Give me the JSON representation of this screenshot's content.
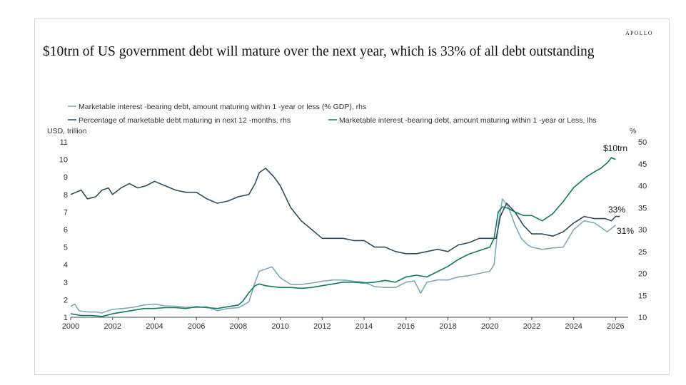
{
  "brand": "APOLLO",
  "title": "$10trn of US government debt will mature over the next year, which is 33% of all debt outstanding",
  "chart_data": {
    "type": "line",
    "title": "$10trn of US government debt will mature over the next year, which is 33% of all debt outstanding",
    "left_axis_label": "USD, trillion",
    "right_axis_label": "%",
    "ylim_left": [
      1,
      11
    ],
    "ylim_right": [
      10,
      50
    ],
    "xlim": [
      2000,
      2026.6
    ],
    "x_ticks": [
      "2000",
      "2002",
      "2004",
      "2006",
      "2008",
      "2010",
      "2012",
      "2014",
      "2016",
      "2018",
      "2020",
      "2022",
      "2024",
      "2026"
    ],
    "y_ticks_left": [
      "1",
      "2",
      "3",
      "4",
      "5",
      "6",
      "7",
      "8",
      "9",
      "10",
      "11"
    ],
    "y_ticks_right": [
      "10",
      "15",
      "20",
      "25",
      "30",
      "35",
      "40",
      "45",
      "50"
    ],
    "legend": [
      "Marketable interest -bearing debt, amount maturing within 1 -year or less (% GDP), rhs",
      "Percentage of marketable debt maturing in next 12 -months, rhs",
      "Marketable interest -bearing debt, amount maturing within 1 -year or Less, lhs"
    ],
    "annotations": [
      "$10trn",
      "33%",
      "31%"
    ],
    "series": [
      {
        "name": "Marketable interest -bearing debt, amount maturing within 1 -year or less (% GDP), rhs",
        "axis": "right",
        "color": "#7fa8b8",
        "x": [
          2000,
          2000.2,
          2000.4,
          2000.8,
          2001.2,
          2001.5,
          2001.8,
          2002,
          2002.5,
          2003,
          2003.5,
          2004,
          2004.5,
          2005,
          2005.5,
          2006,
          2006.5,
          2007,
          2007.5,
          2008,
          2008.2,
          2008.5,
          2008.8,
          2009,
          2009.3,
          2009.6,
          2010,
          2010.5,
          2011,
          2011.5,
          2012,
          2012.5,
          2013,
          2013.5,
          2014,
          2014.5,
          2015,
          2015.5,
          2016,
          2016.4,
          2016.7,
          2017,
          2017.5,
          2018,
          2018.5,
          2019,
          2019.5,
          2020,
          2020.2,
          2020.4,
          2020.6,
          2020.9,
          2021.2,
          2021.5,
          2021.8,
          2022,
          2022.5,
          2023,
          2023.5,
          2024,
          2024.5,
          2025,
          2025.3,
          2025.6,
          2026
        ],
        "values": [
          12.5,
          13,
          11.5,
          11.2,
          11.2,
          11,
          11.5,
          11.8,
          12,
          12.3,
          12.8,
          13,
          12.6,
          12.5,
          12.3,
          12.2,
          12.4,
          11.5,
          12,
          12.2,
          12.7,
          13.5,
          18,
          20.5,
          21,
          21.5,
          19,
          17.5,
          17.5,
          17.8,
          18.2,
          18.5,
          18.5,
          18.2,
          18,
          17,
          16.8,
          16.8,
          18,
          18.3,
          15.5,
          18,
          18.5,
          18.5,
          19.2,
          19.5,
          20,
          20.5,
          22,
          31,
          37,
          35,
          31,
          28,
          26.5,
          26,
          25.5,
          25.8,
          26,
          30,
          32,
          31.5,
          30.5,
          29.5,
          31
        ]
      },
      {
        "name": "Percentage of marketable debt maturing in next 12 -months, rhs",
        "axis": "right",
        "color": "#2f4b60",
        "x": [
          2000,
          2000.5,
          2000.8,
          2001.2,
          2001.5,
          2001.8,
          2002,
          2002.4,
          2002.8,
          2003.2,
          2003.6,
          2004,
          2004.5,
          2005,
          2005.5,
          2006,
          2006.5,
          2007,
          2007.5,
          2008,
          2008.5,
          2008.8,
          2009,
          2009.3,
          2009.7,
          2010,
          2010.5,
          2011,
          2011.5,
          2012,
          2012.5,
          2013,
          2013.5,
          2014,
          2014.5,
          2015,
          2015.5,
          2016,
          2016.5,
          2017,
          2017.5,
          2018,
          2018.5,
          2019,
          2019.5,
          2020,
          2020.3,
          2020.5,
          2020.8,
          2021.2,
          2021.6,
          2022,
          2022.5,
          2023,
          2023.5,
          2024,
          2024.5,
          2025,
          2025.5,
          2025.8,
          2026,
          2026.2
        ],
        "values": [
          38,
          39,
          37,
          37.5,
          39,
          39.5,
          38,
          39.5,
          40.5,
          39.5,
          40,
          41,
          40,
          39,
          38.5,
          38.5,
          37,
          36,
          36.5,
          37.5,
          38,
          40.5,
          43,
          44,
          42,
          40,
          35,
          32,
          30,
          28,
          28,
          28,
          27.5,
          27.5,
          26,
          26,
          25,
          24.5,
          24.5,
          25,
          25.5,
          25,
          26.5,
          27,
          28,
          28,
          28,
          33,
          36,
          34,
          31,
          29,
          29,
          28.5,
          29.5,
          31.5,
          33,
          32.5,
          32.5,
          32,
          33,
          33
        ]
      },
      {
        "name": "Marketable interest -bearing debt, amount maturing within 1 -year or Less, lhs",
        "axis": "left",
        "color": "#0f7a62",
        "x": [
          2000,
          2000.5,
          2001,
          2001.5,
          2002,
          2002.5,
          2003,
          2003.5,
          2004,
          2004.5,
          2005,
          2005.5,
          2006,
          2006.5,
          2007,
          2007.5,
          2008,
          2008.2,
          2008.5,
          2008.8,
          2009,
          2009.3,
          2009.6,
          2010,
          2010.5,
          2011,
          2011.5,
          2012,
          2012.5,
          2013,
          2013.5,
          2014,
          2014.5,
          2015,
          2015.5,
          2016,
          2016.5,
          2017,
          2017.5,
          2018,
          2018.5,
          2019,
          2019.5,
          2020,
          2020.2,
          2020.4,
          2020.6,
          2020.9,
          2021.2,
          2021.6,
          2022,
          2022.5,
          2023,
          2023.5,
          2024,
          2024.3,
          2024.6,
          2025,
          2025.3,
          2025.6,
          2025.8,
          2026
        ],
        "values": [
          1.2,
          1.1,
          1.1,
          1.05,
          1.2,
          1.3,
          1.4,
          1.5,
          1.5,
          1.55,
          1.55,
          1.5,
          1.6,
          1.55,
          1.5,
          1.6,
          1.7,
          1.9,
          2.4,
          2.8,
          2.9,
          2.8,
          2.75,
          2.7,
          2.7,
          2.65,
          2.7,
          2.8,
          2.9,
          3.0,
          3.0,
          2.95,
          3.0,
          3.1,
          3.0,
          3.3,
          3.4,
          3.3,
          3.6,
          3.9,
          4.3,
          4.6,
          4.8,
          5.0,
          5.5,
          7.0,
          7.3,
          7.2,
          7.0,
          6.8,
          6.8,
          6.5,
          6.9,
          7.6,
          8.4,
          8.7,
          9.0,
          9.3,
          9.5,
          9.8,
          10.1,
          10.0
        ]
      }
    ]
  }
}
